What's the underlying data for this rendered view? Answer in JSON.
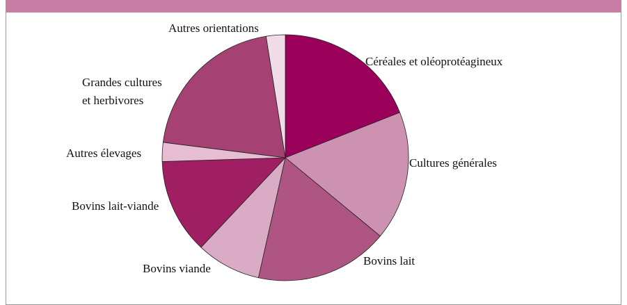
{
  "chart_data": {
    "type": "pie",
    "categories": [
      "Céréales et oléoprotéagineux",
      "Cultures générales",
      "Bovins lait",
      "Bovins viande",
      "Bovins lait-viande",
      "Autres élevages",
      "Grandes cultures\net herbivores",
      "Autres orientations"
    ],
    "values": [
      19,
      17,
      17.5,
      8.5,
      12.5,
      2.5,
      20.5,
      2.5
    ],
    "colors": [
      "#9b005a",
      "#cd92b2",
      "#ae5584",
      "#d9abc4",
      "#a01f62",
      "#e6bdd3",
      "#a54273",
      "#f0dce7"
    ]
  }
}
